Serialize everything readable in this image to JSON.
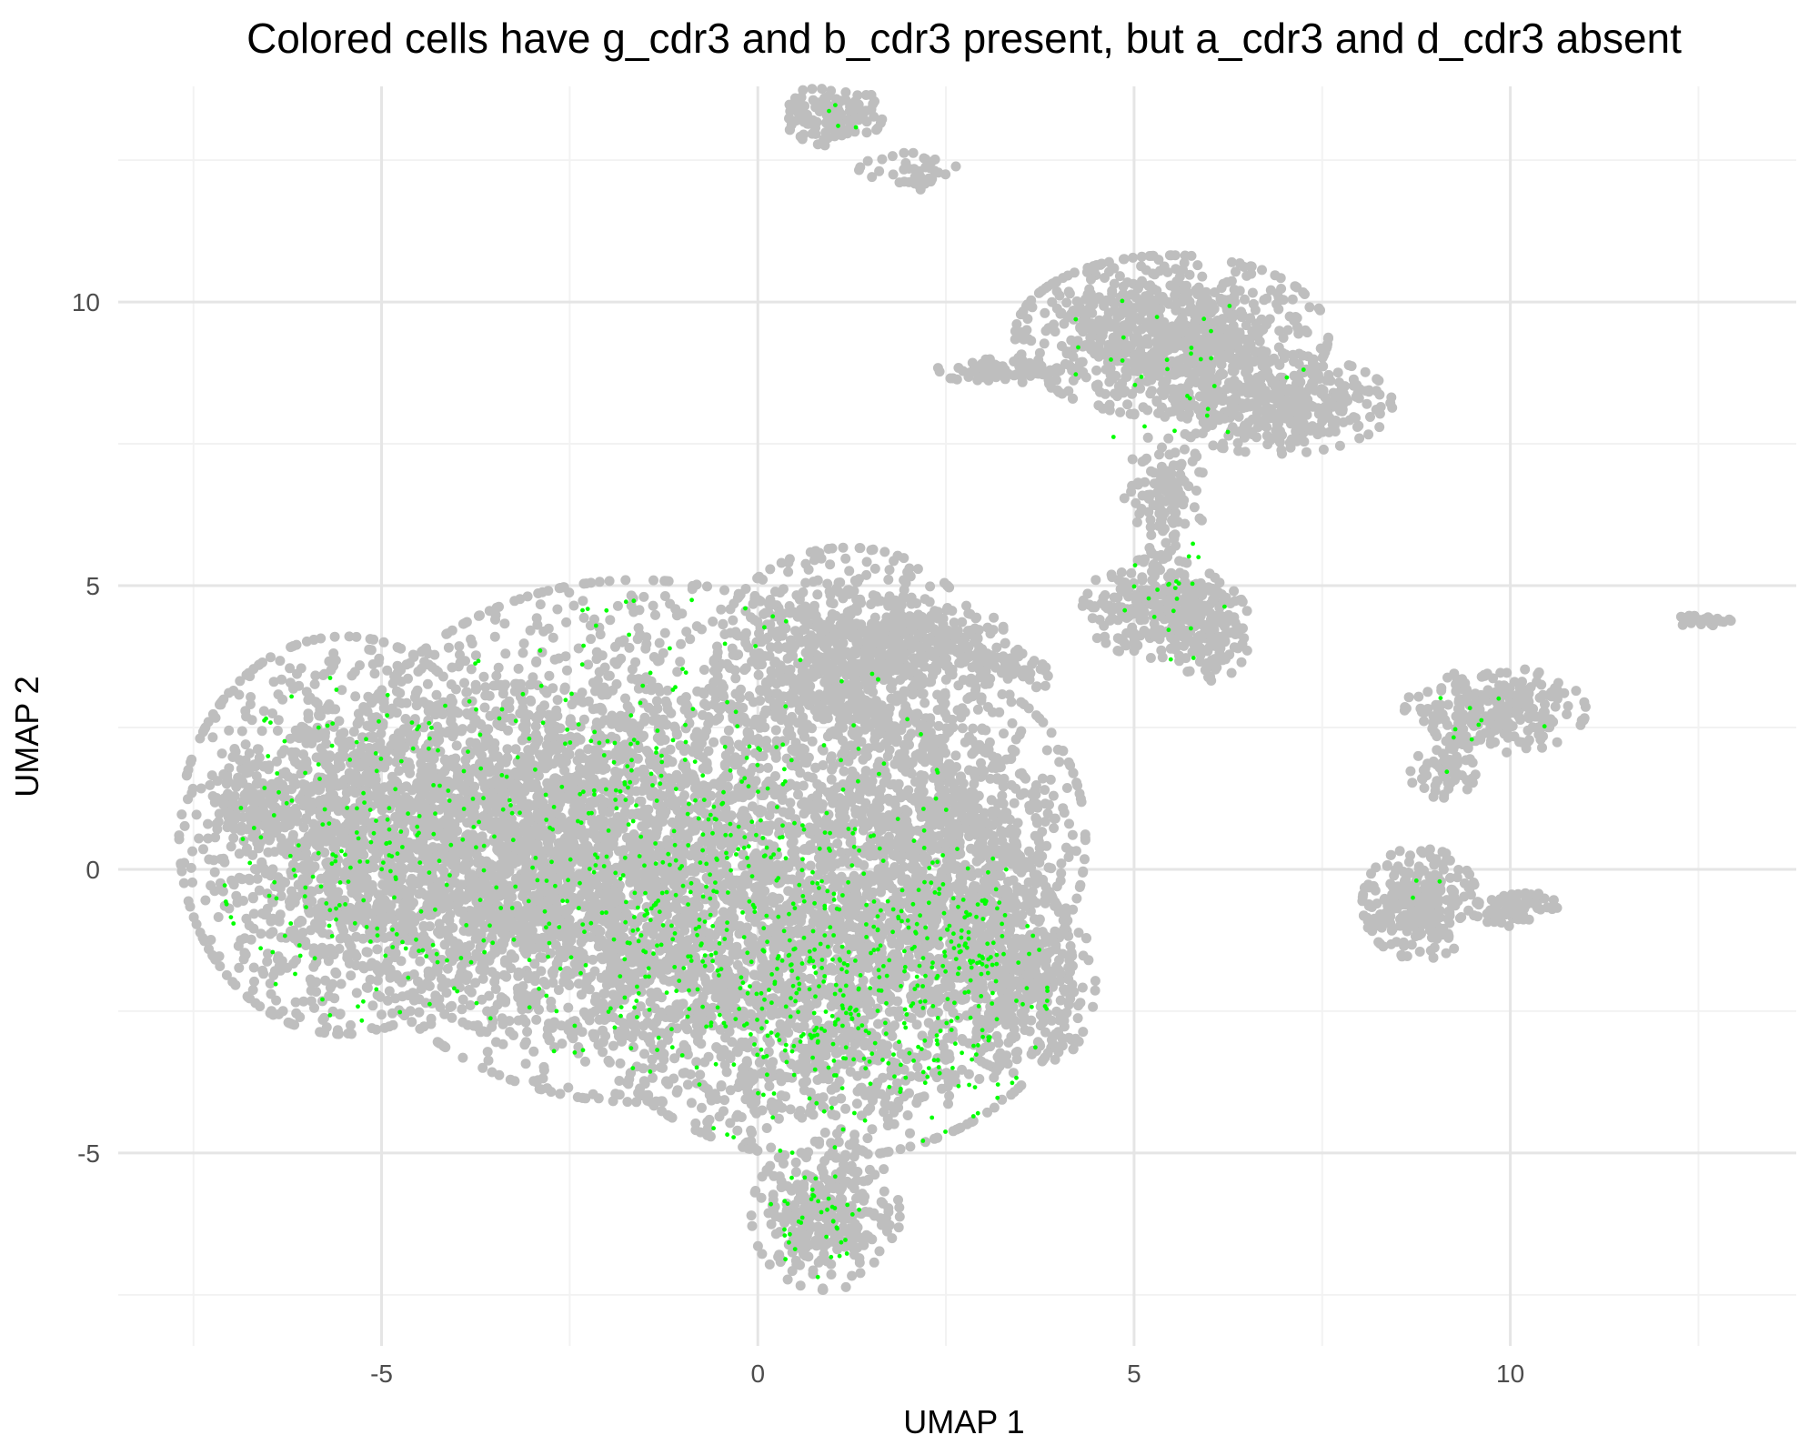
{
  "chart_data": {
    "type": "scatter",
    "title": "Colored cells have g_cdr3 and b_cdr3 present, but a_cdr3 and d_cdr3 absent",
    "xlabel": "UMAP 1",
    "ylabel": "UMAP 2",
    "xlim": [
      -8.5,
      13.8
    ],
    "ylim": [
      -8.4,
      13.8
    ],
    "x_ticks": [
      -5,
      0,
      5,
      10
    ],
    "y_ticks": [
      -5,
      0,
      5,
      10
    ],
    "x_tick_labels": [
      "-5",
      "0",
      "5",
      "10"
    ],
    "y_tick_labels": [
      "-5",
      "0",
      "5",
      "10"
    ],
    "grid": true,
    "legend": "none",
    "colors": {
      "background_cells": "#bebebe",
      "highlighted_cells": "#00ff00"
    },
    "series": [
      {
        "role": "background",
        "color": "#bebebe",
        "regions": [
          {
            "cx": -1.6,
            "cy": 0.5,
            "rx": 3.8,
            "ry": 4.2,
            "n": 2600
          },
          {
            "cx": -5.5,
            "cy": 0.6,
            "rx": 2.0,
            "ry": 3.2,
            "n": 1400
          },
          {
            "cx": -3.2,
            "cy": 0.2,
            "rx": 2.0,
            "ry": 2.8,
            "n": 1000
          },
          {
            "cx": 0.9,
            "cy": -1.8,
            "rx": 3.0,
            "ry": 3.0,
            "n": 1800
          },
          {
            "cx": 1.2,
            "cy": 3.7,
            "rx": 1.6,
            "ry": 1.8,
            "n": 700
          },
          {
            "cx": 2.6,
            "cy": 0.5,
            "rx": 1.6,
            "ry": 2.6,
            "n": 900
          },
          {
            "cx": 3.5,
            "cy": -2.0,
            "rx": 0.9,
            "ry": 1.5,
            "n": 300
          },
          {
            "cx": 0.9,
            "cy": -6.1,
            "rx": 0.9,
            "ry": 1.2,
            "n": 300
          },
          {
            "cx": -6.7,
            "cy": 1.3,
            "rx": 0.6,
            "ry": 0.6,
            "n": 60
          },
          {
            "cx": 2.1,
            "cy": 4.1,
            "rx": 1.1,
            "ry": 0.6,
            "n": 180
          },
          {
            "cx": 3.3,
            "cy": 3.5,
            "rx": 0.6,
            "ry": 0.4,
            "n": 70
          },
          {
            "cx": 5.5,
            "cy": 9.4,
            "rx": 1.9,
            "ry": 1.3,
            "n": 850
          },
          {
            "cx": 6.9,
            "cy": 8.2,
            "rx": 1.4,
            "ry": 0.8,
            "n": 350
          },
          {
            "cx": 3.3,
            "cy": 8.8,
            "rx": 0.9,
            "ry": 0.2,
            "n": 80
          },
          {
            "cx": 5.3,
            "cy": 4.6,
            "rx": 0.9,
            "ry": 0.8,
            "n": 250
          },
          {
            "cx": 6.0,
            "cy": 4.2,
            "rx": 0.5,
            "ry": 0.8,
            "n": 130
          },
          {
            "cx": 5.4,
            "cy": 6.6,
            "rx": 0.5,
            "ry": 1.0,
            "n": 120
          },
          {
            "cx": 1.0,
            "cy": 13.3,
            "rx": 0.6,
            "ry": 0.5,
            "n": 120
          },
          {
            "cx": 2.0,
            "cy": 12.3,
            "rx": 0.6,
            "ry": 0.3,
            "n": 40
          },
          {
            "cx": 9.8,
            "cy": 2.8,
            "rx": 1.1,
            "ry": 0.7,
            "n": 280
          },
          {
            "cx": 9.1,
            "cy": 1.7,
            "rx": 0.4,
            "ry": 0.4,
            "n": 60
          },
          {
            "cx": 8.8,
            "cy": -0.6,
            "rx": 0.7,
            "ry": 0.9,
            "n": 250
          },
          {
            "cx": 10.0,
            "cy": -0.7,
            "rx": 0.6,
            "ry": 0.3,
            "n": 70
          },
          {
            "cx": 12.5,
            "cy": 4.4,
            "rx": 0.4,
            "ry": 0.1,
            "n": 30
          }
        ]
      },
      {
        "role": "highlighted",
        "color": "#00ff00",
        "regions": [
          {
            "cx": -1.2,
            "cy": 0.6,
            "rx": 3.4,
            "ry": 3.8,
            "n": 420
          },
          {
            "cx": -5.2,
            "cy": 0.4,
            "rx": 1.8,
            "ry": 2.8,
            "n": 170
          },
          {
            "cx": 1.0,
            "cy": -2.2,
            "rx": 2.6,
            "ry": 2.6,
            "n": 380
          },
          {
            "cx": 2.8,
            "cy": -1.8,
            "rx": 0.8,
            "ry": 2.0,
            "n": 90
          },
          {
            "cx": 0.8,
            "cy": -6.2,
            "rx": 0.6,
            "ry": 0.9,
            "n": 40
          },
          {
            "cx": 5.5,
            "cy": 8.8,
            "rx": 1.6,
            "ry": 1.2,
            "n": 30
          },
          {
            "cx": 5.6,
            "cy": 5.0,
            "rx": 0.7,
            "ry": 1.2,
            "n": 22
          },
          {
            "cx": 9.7,
            "cy": 2.4,
            "rx": 0.9,
            "ry": 0.8,
            "n": 10
          },
          {
            "cx": 8.8,
            "cy": -0.4,
            "rx": 0.3,
            "ry": 0.3,
            "n": 3
          },
          {
            "cx": 1.0,
            "cy": 13.2,
            "rx": 0.4,
            "ry": 0.3,
            "n": 4
          }
        ]
      }
    ]
  }
}
